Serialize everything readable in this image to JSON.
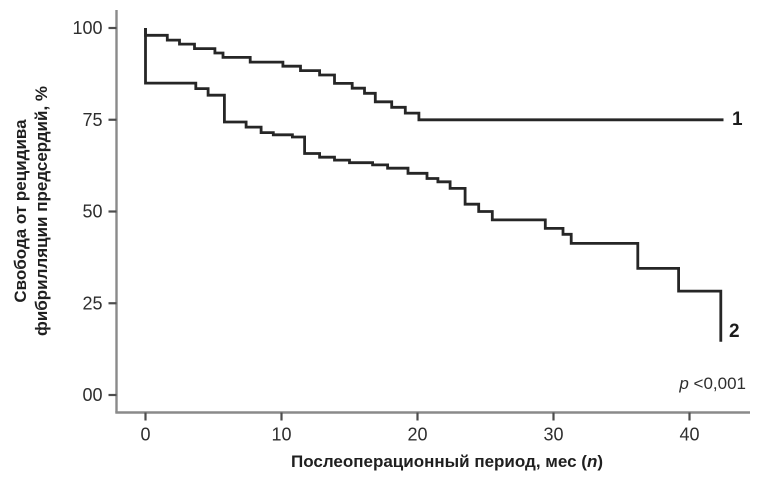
{
  "figure": {
    "p_annotation": {
      "italic_part": "p",
      "rest": " <0,001"
    },
    "curve_end_labels": {
      "curve1": "1",
      "curve2": "2"
    }
  },
  "chart_data": {
    "type": "line",
    "subtype": "kaplan-meier-step",
    "title": "",
    "xlabel": {
      "prefix": "Послеоперационный период, мес (",
      "italic": "n",
      "suffix": ")"
    },
    "ylabel_lines": [
      "Свобода от рецидива",
      "фибрилляции предсердий, %"
    ],
    "xlim": [
      0,
      44
    ],
    "ylim": [
      0,
      100
    ],
    "grid": false,
    "legend_position": "curve-end-labels",
    "x_ticks": [
      {
        "value": 0,
        "label": "0"
      },
      {
        "value": 10,
        "label": "10"
      },
      {
        "value": 20,
        "label": "20"
      },
      {
        "value": 30,
        "label": "30"
      },
      {
        "value": 40,
        "label": "40"
      }
    ],
    "y_ticks": [
      {
        "value": 100,
        "label": "100"
      },
      {
        "value": 75,
        "label": "75"
      },
      {
        "value": 50,
        "label": "50"
      },
      {
        "value": 25,
        "label": "25"
      },
      {
        "value": 0,
        "label": "00"
      }
    ],
    "colors": {
      "curve": "#262626",
      "axis": "#8a8a8a",
      "tick": "#4d4d4d",
      "text": "#2e2e2e"
    },
    "series": [
      {
        "name": "1",
        "description": "group 1 freedom from AF recurrence, %",
        "start": [
          0,
          100
        ],
        "steps": [
          [
            0,
            98
          ],
          [
            1.6,
            96.7
          ],
          [
            2.5,
            95.6
          ],
          [
            3.6,
            94.4
          ],
          [
            5.1,
            93.2
          ],
          [
            5.7,
            92.0
          ],
          [
            7.7,
            90.7
          ],
          [
            10.1,
            89.6
          ],
          [
            11.4,
            88.4
          ],
          [
            12.8,
            87.2
          ],
          [
            13.9,
            84.9
          ],
          [
            15.2,
            83.6
          ],
          [
            16.1,
            82.2
          ],
          [
            16.9,
            79.9
          ],
          [
            18.1,
            78.4
          ],
          [
            19.1,
            76.8
          ],
          [
            20.1,
            75.0
          ]
        ],
        "end_t": 42.5,
        "final_value": 75.0
      },
      {
        "name": "2",
        "description": "group 2 freedom from AF recurrence, %",
        "start": [
          0,
          100
        ],
        "steps": [
          [
            0,
            85
          ],
          [
            3.7,
            83.5
          ],
          [
            4.6,
            81.7
          ],
          [
            5.8,
            74.4
          ],
          [
            7.4,
            73.0
          ],
          [
            8.5,
            71.5
          ],
          [
            9.4,
            70.9
          ],
          [
            10.8,
            70.3
          ],
          [
            11.7,
            65.8
          ],
          [
            12.8,
            64.8
          ],
          [
            13.9,
            64.0
          ],
          [
            15.0,
            63.3
          ],
          [
            16.7,
            62.7
          ],
          [
            17.8,
            61.8
          ],
          [
            19.3,
            60.4
          ],
          [
            20.7,
            59.0
          ],
          [
            21.5,
            58.1
          ],
          [
            22.4,
            56.3
          ],
          [
            23.5,
            52.0
          ],
          [
            24.5,
            50.0
          ],
          [
            25.5,
            47.7
          ],
          [
            29.4,
            45.4
          ],
          [
            30.7,
            43.8
          ],
          [
            31.3,
            41.3
          ],
          [
            36.2,
            34.5
          ],
          [
            39.2,
            28.3
          ],
          [
            42.3,
            14.5
          ]
        ],
        "end_t": 42.3,
        "final_value": 14.5
      }
    ],
    "annotations": [
      {
        "text": "p <0,001",
        "style": "italic-p",
        "position": "bottom-right"
      }
    ]
  }
}
